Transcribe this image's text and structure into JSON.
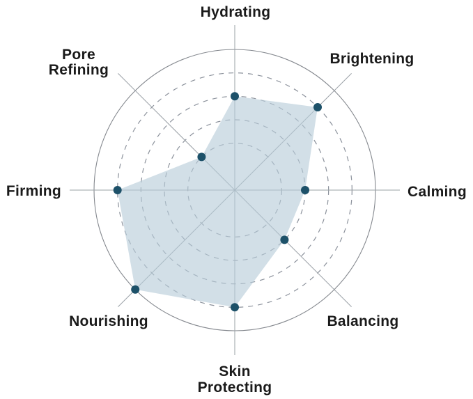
{
  "chart_data": {
    "type": "radar",
    "categories": [
      "Hydrating",
      "Brightening",
      "Calming",
      "Balancing",
      "Skin Protecting",
      "Nourishing",
      "Firming",
      "Pore Refining"
    ],
    "values": [
      4,
      5,
      3,
      3,
      5,
      6,
      5,
      2
    ],
    "scale_min": 0,
    "scale_max": 6,
    "rings_dashed_at_levels": [
      2,
      3,
      4,
      5
    ],
    "ring_solid_at_level": 6,
    "grid": "circular, 8 spokes extending beyond outer ring",
    "legend": "none",
    "title": ""
  },
  "colors": {
    "background": "#ffffff",
    "fill": "rgba(183,204,216,0.62)",
    "dot": "#1d5169",
    "spoke": "#9aa0a6",
    "ring_dashed": "#8b919b",
    "ring_solid": "#84888e",
    "label": "#1a1a1a"
  }
}
